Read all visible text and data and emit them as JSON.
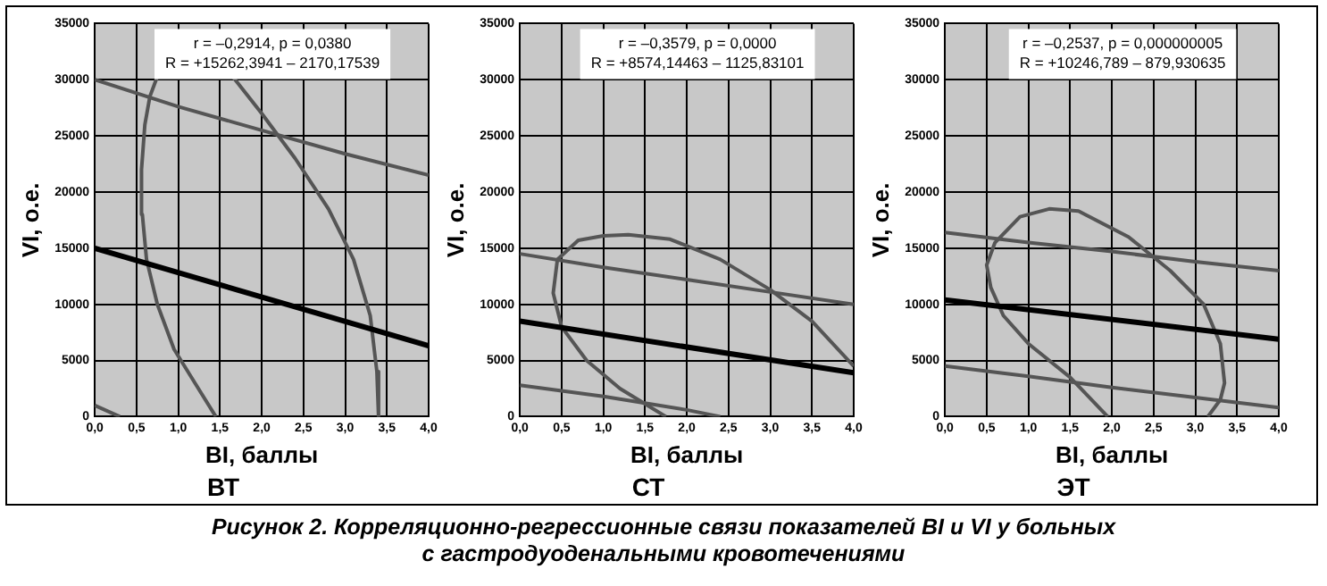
{
  "chart_data": [
    {
      "type": "line",
      "title": "ВТ",
      "xlabel": "BI, баллы",
      "ylabel": "VI, о.е.",
      "annotations": [
        "r = –0,2914, p = 0,0380",
        "R = +15262,3941 – 2170,17539",
        "Рисунок 2. Корреляционно-регрессионные связи показателей BI и VI у больных",
        "с гастродуоденальными кровотечениями"
      ],
      "grid": true,
      "marker": "none",
      "xlim": [
        0,
        4
      ],
      "ylim": [
        0,
        35000
      ],
      "xticks": [
        {
          "value": 0,
          "label": "0,0"
        },
        {
          "value": 0.5,
          "label": "0,5"
        },
        {
          "value": 1,
          "label": "1,0"
        },
        {
          "value": 1.5,
          "label": "1,5"
        },
        {
          "value": 2,
          "label": "2,0"
        },
        {
          "value": 2.5,
          "label": "2,5"
        },
        {
          "value": 3,
          "label": "3,0"
        },
        {
          "value": 3.5,
          "label": "3,5"
        },
        {
          "value": 4,
          "label": "4,0"
        }
      ],
      "yticks": [
        0,
        5000,
        10000,
        15000,
        20000,
        25000,
        30000,
        35000
      ],
      "series": [
        {
          "color": "#000000",
          "x": [
            0,
            4
          ],
          "values": [
            15000,
            6300
          ]
        },
        {
          "color": "#555555",
          "x": [
            0,
            1,
            2,
            3,
            4
          ],
          "values": [
            30000,
            27600,
            25500,
            23400,
            21500
          ]
        },
        {
          "color": "#555555",
          "x": [
            0,
            0.3
          ],
          "values": [
            1000,
            0
          ]
        },
        {
          "color": "#555555",
          "x": [
            1.45,
            1.2,
            0.95,
            0.75,
            0.62,
            0.57,
            0.56,
            0.6,
            0.66,
            0.75,
            null,
            1.65,
            2.0,
            2.4,
            2.8,
            3.1,
            3.3,
            3.38,
            3.4
          ],
          "values": [
            0,
            3000,
            6000,
            10000,
            14000,
            18000,
            22000,
            26000,
            28500,
            30300,
            null,
            30300,
            27000,
            23000,
            18500,
            14000,
            9000,
            4000,
            0
          ]
        }
      ]
    },
    {
      "type": "line",
      "title": "СТ",
      "xlabel": "BI, баллы",
      "ylabel": "VI, о.е.",
      "annotations": [
        "r = –0,3579, p = 0,0000",
        "R = +8574,14463 – 1125,83101"
      ],
      "grid": true,
      "marker": "none",
      "xlim": [
        0,
        4
      ],
      "ylim": [
        0,
        35000
      ],
      "xticks": [
        {
          "value": 0,
          "label": "0,0"
        },
        {
          "value": 0.5,
          "label": "0,5"
        },
        {
          "value": 1,
          "label": "1,0"
        },
        {
          "value": 1.5,
          "label": "1,5"
        },
        {
          "value": 2,
          "label": "2,0"
        },
        {
          "value": 2.5,
          "label": "2,5"
        },
        {
          "value": 3,
          "label": "3,0"
        },
        {
          "value": 3.5,
          "label": "3,5"
        },
        {
          "value": 4,
          "label": "4,0"
        }
      ],
      "yticks": [
        0,
        5000,
        10000,
        15000,
        20000,
        25000,
        30000,
        35000
      ],
      "series": [
        {
          "color": "#000000",
          "x": [
            0,
            4
          ],
          "values": [
            8500,
            3900
          ]
        },
        {
          "color": "#555555",
          "x": [
            0,
            1,
            2,
            3,
            4
          ],
          "values": [
            14500,
            13300,
            12200,
            11100,
            10000
          ]
        },
        {
          "color": "#555555",
          "x": [
            0,
            1,
            2,
            2.4
          ],
          "values": [
            2800,
            1800,
            600,
            0
          ]
        },
        {
          "color": "#555555",
          "x": [
            1.75,
            1.2,
            0.8,
            0.5,
            0.4,
            0.45,
            0.7,
            1.0,
            1.3,
            1.8,
            2.4,
            3.0,
            3.5,
            4.0
          ],
          "values": [
            0,
            2500,
            5000,
            8000,
            11000,
            14000,
            15700,
            16100,
            16200,
            15800,
            14000,
            11300,
            8500,
            4500
          ]
        }
      ]
    },
    {
      "type": "line",
      "title": "ЭТ",
      "xlabel": "BI, баллы",
      "ylabel": "VI, о.е.",
      "annotations": [
        "r = –0,2537, p = 0,000000005",
        "R = +10246,789 – 879,930635"
      ],
      "grid": true,
      "marker": "none",
      "xlim": [
        0,
        4
      ],
      "ylim": [
        0,
        35000
      ],
      "xticks": [
        {
          "value": 0,
          "label": "0,0"
        },
        {
          "value": 0.5,
          "label": "0,5"
        },
        {
          "value": 1,
          "label": "1,0"
        },
        {
          "value": 1.5,
          "label": "1,5"
        },
        {
          "value": 2,
          "label": "2,0"
        },
        {
          "value": 2.5,
          "label": "2,5"
        },
        {
          "value": 3,
          "label": "3,0"
        },
        {
          "value": 3.5,
          "label": "3,5"
        },
        {
          "value": 4,
          "label": "4,0"
        }
      ],
      "yticks": [
        0,
        5000,
        10000,
        15000,
        20000,
        25000,
        30000,
        35000
      ],
      "series": [
        {
          "color": "#000000",
          "x": [
            0,
            4
          ],
          "values": [
            10400,
            6900
          ]
        },
        {
          "color": "#555555",
          "x": [
            0,
            1,
            2,
            3,
            4
          ],
          "values": [
            16400,
            15500,
            14700,
            13800,
            13000
          ]
        },
        {
          "color": "#555555",
          "x": [
            0,
            1,
            2,
            3,
            4
          ],
          "values": [
            4500,
            3600,
            2600,
            1700,
            800
          ]
        },
        {
          "color": "#555555",
          "x": [
            1.95,
            1.5,
            1.0,
            0.7,
            0.55,
            0.5,
            0.6,
            0.9,
            1.25,
            1.6,
            2.2,
            2.7,
            3.1,
            3.3,
            3.35,
            3.3,
            3.15
          ],
          "values": [
            0,
            3500,
            6500,
            9000,
            11500,
            13500,
            15500,
            17800,
            18500,
            18300,
            16000,
            13000,
            10000,
            6500,
            3000,
            1500,
            0
          ]
        }
      ]
    }
  ]
}
